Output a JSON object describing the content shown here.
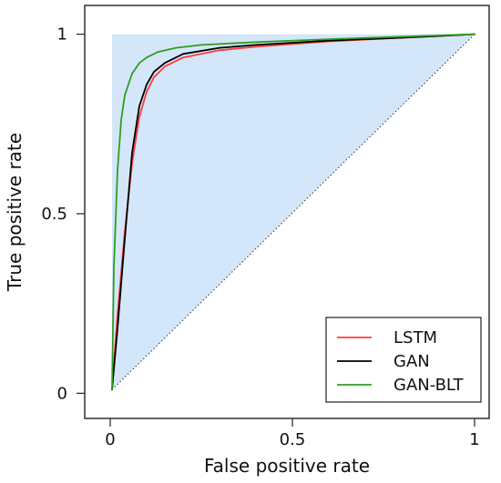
{
  "chart_data": {
    "type": "line",
    "title": "",
    "xlabel": "False positive rate",
    "ylabel": "True positive rate",
    "xlim": [
      -0.07,
      1.04
    ],
    "ylim": [
      -0.07,
      1.08
    ],
    "xticks": [
      {
        "value": 0,
        "label": "0"
      },
      {
        "value": 0.5,
        "label": "0.5"
      },
      {
        "value": 1,
        "label": "1"
      }
    ],
    "yticks": [
      {
        "value": 0,
        "label": "0"
      },
      {
        "value": 0.5,
        "label": "0.5"
      },
      {
        "value": 1,
        "label": "1"
      }
    ],
    "grid": false,
    "legend_position": "bottom-right",
    "shaded_region": {
      "color": "#d4e6f9",
      "points": [
        [
          0.005,
          0.01
        ],
        [
          0.005,
          1.0
        ],
        [
          1.0,
          1.0
        ]
      ]
    },
    "reference_line": {
      "style": "dotted",
      "color": "#333333",
      "points": [
        [
          0.005,
          0.01
        ],
        [
          1.0,
          1.0
        ]
      ]
    },
    "series": [
      {
        "name": "LSTM",
        "color": "#ff3b3b",
        "x": [
          0.005,
          0.02,
          0.04,
          0.06,
          0.08,
          0.1,
          0.12,
          0.15,
          0.2,
          0.3,
          0.4,
          0.6,
          0.8,
          1.0
        ],
        "y": [
          0.01,
          0.22,
          0.45,
          0.64,
          0.77,
          0.84,
          0.88,
          0.91,
          0.935,
          0.955,
          0.965,
          0.98,
          0.99,
          1.0
        ]
      },
      {
        "name": "GAN",
        "color": "#000000",
        "x": [
          0.005,
          0.02,
          0.04,
          0.06,
          0.08,
          0.1,
          0.12,
          0.15,
          0.2,
          0.3,
          0.4,
          0.6,
          0.8,
          1.0
        ],
        "y": [
          0.01,
          0.18,
          0.43,
          0.67,
          0.8,
          0.86,
          0.895,
          0.92,
          0.945,
          0.962,
          0.97,
          0.982,
          0.99,
          1.0
        ]
      },
      {
        "name": "GAN-BLT",
        "color": "#2e9e1e",
        "x": [
          0.005,
          0.01,
          0.02,
          0.03,
          0.04,
          0.06,
          0.08,
          0.1,
          0.13,
          0.18,
          0.25,
          0.4,
          0.6,
          0.8,
          1.0
        ],
        "y": [
          0.01,
          0.35,
          0.62,
          0.76,
          0.83,
          0.89,
          0.92,
          0.935,
          0.95,
          0.962,
          0.97,
          0.978,
          0.986,
          0.993,
          1.0
        ]
      }
    ]
  }
}
